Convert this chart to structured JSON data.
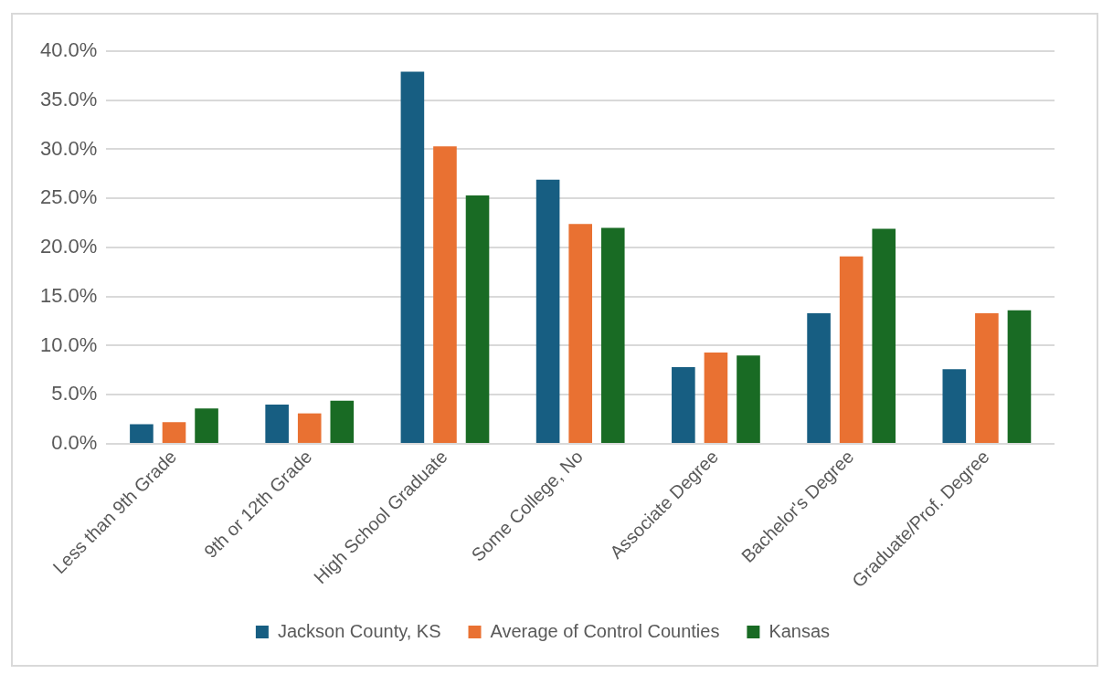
{
  "chart_data": {
    "type": "bar",
    "categories": [
      "Less than 9th Grade",
      "9th or 12th Grade",
      "High School Graduate",
      "Some College, No",
      "Associate Degree",
      "Bachelor's Degree",
      "Graduate/Prof. Degree"
    ],
    "series": [
      {
        "name": "Jackson County, KS",
        "color": "#175e82",
        "values": [
          2.0,
          4.0,
          37.9,
          26.9,
          7.8,
          13.3,
          7.6
        ]
      },
      {
        "name": "Average of Control Counties",
        "color": "#e97132",
        "values": [
          2.2,
          3.1,
          30.3,
          22.4,
          9.3,
          19.1,
          13.3
        ]
      },
      {
        "name": "Kansas",
        "color": "#196b24",
        "values": [
          3.6,
          4.4,
          25.3,
          22.0,
          9.0,
          21.9,
          13.6
        ]
      }
    ],
    "ylim": [
      0,
      40
    ],
    "yticks": [
      {
        "value": 0,
        "label": "0.0%"
      },
      {
        "value": 5,
        "label": "5.0%"
      },
      {
        "value": 10,
        "label": "10.0%"
      },
      {
        "value": 15,
        "label": "15.0%"
      },
      {
        "value": 20,
        "label": "20.0%"
      },
      {
        "value": 25,
        "label": "25.0%"
      },
      {
        "value": 30,
        "label": "30.0%"
      },
      {
        "value": 35,
        "label": "35.0%"
      },
      {
        "value": 40,
        "label": "40.0%"
      }
    ],
    "grid": "y",
    "legend": "bottom"
  }
}
